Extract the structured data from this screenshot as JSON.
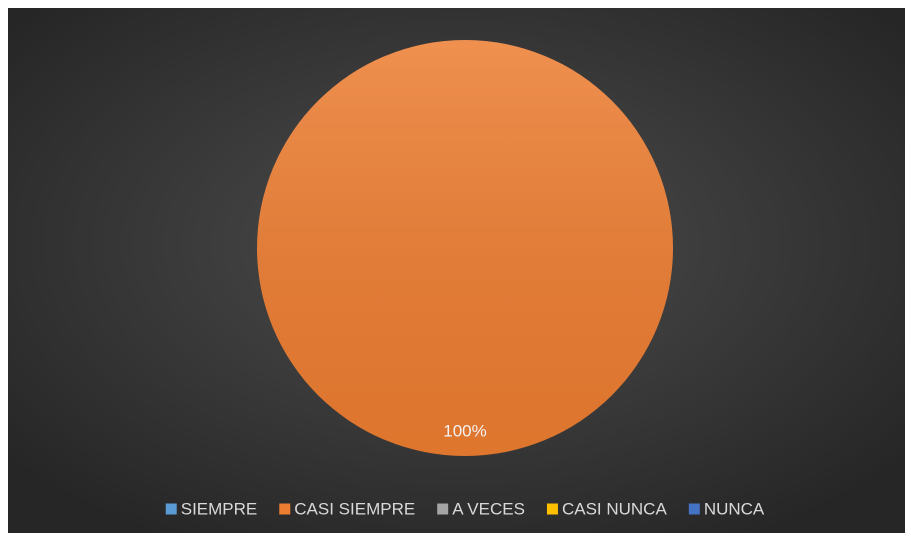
{
  "chart_data": {
    "type": "pie",
    "categories": [
      "SIEMPRE",
      "CASI SIEMPRE",
      "A VECES",
      "CASI NUNCA",
      "NUNCA"
    ],
    "values": [
      0,
      100,
      0,
      0,
      0
    ],
    "value_labels": [
      null,
      "100%",
      null,
      null,
      null
    ],
    "colors": [
      "#5b9bd5",
      "#ed7d31",
      "#a5a5a5",
      "#ffc000",
      "#4472c4"
    ],
    "legend": "bottom"
  }
}
